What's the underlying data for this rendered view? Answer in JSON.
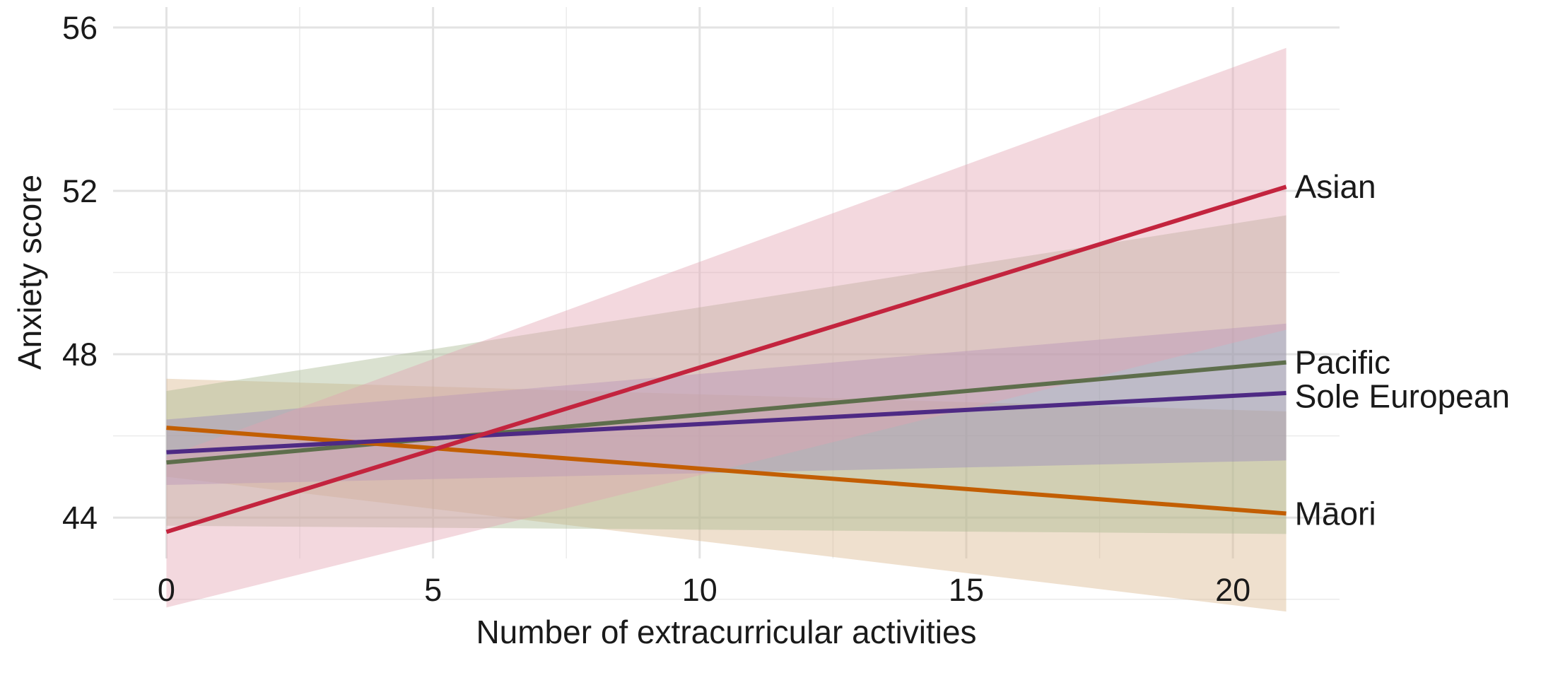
{
  "chart_data": {
    "type": "line",
    "title": "",
    "xlabel": "Number of extracurricular activities",
    "ylabel": "Anxiety score",
    "xlim": [
      -1,
      22
    ],
    "ylim": [
      43,
      56.5
    ],
    "x_ticks": [
      0,
      5,
      10,
      15,
      20
    ],
    "y_ticks": [
      44,
      48,
      52,
      56
    ],
    "grid": true,
    "legend": "direct labels at right end of lines",
    "series": [
      {
        "name": "Māori",
        "color": "#c25e03",
        "band_color": "#d9b48b",
        "x": [
          0,
          21
        ],
        "y": [
          46.2,
          44.1
        ],
        "lower": [
          45.0,
          41.7
        ],
        "upper": [
          47.4,
          46.6
        ]
      },
      {
        "name": "Pacific",
        "color": "#5e6e4c",
        "band_color": "#a8b88f",
        "x": [
          0,
          21
        ],
        "y": [
          45.35,
          47.8
        ],
        "lower": [
          43.8,
          43.6
        ],
        "upper": [
          47.1,
          51.4
        ]
      },
      {
        "name": "Sole European",
        "color": "#4e2a84",
        "band_color": "#9889bd",
        "x": [
          0,
          21
        ],
        "y": [
          45.6,
          47.05
        ],
        "lower": [
          44.8,
          45.4
        ],
        "upper": [
          46.4,
          48.75
        ]
      },
      {
        "name": "Asian",
        "color": "#c3243e",
        "band_color": "#e2a3b0",
        "x": [
          0,
          21
        ],
        "y": [
          43.65,
          52.1
        ],
        "lower": [
          41.8,
          48.6
        ],
        "upper": [
          45.5,
          55.5
        ]
      }
    ]
  }
}
